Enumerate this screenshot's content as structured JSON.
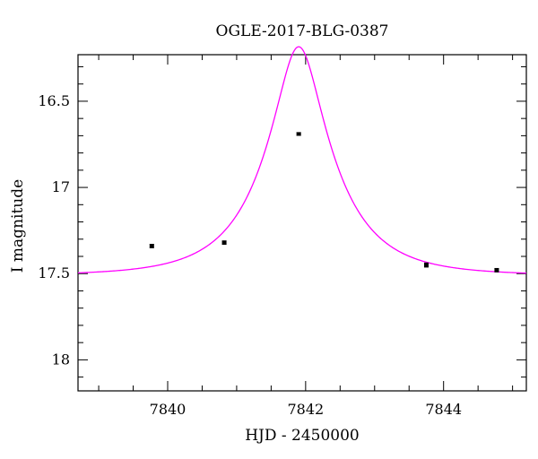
{
  "chart_data": {
    "type": "scatter",
    "title": "OGLE-2017-BLG-0387",
    "xlabel": "HJD - 2450000",
    "ylabel": "I magnitude",
    "xlim": [
      7838.7,
      7845.2
    ],
    "ylim": [
      18.18,
      16.23
    ],
    "y_inverted": true,
    "x_ticks": [
      7840,
      7842,
      7844
    ],
    "x_tick_labels": [
      "7840",
      "7842",
      "7844"
    ],
    "y_ticks": [
      16.5,
      17,
      17.5,
      18
    ],
    "y_tick_labels": [
      "16.5",
      "17",
      "17.5",
      "18"
    ],
    "grid": false,
    "series": [
      {
        "type": "scatter",
        "color": "#000000",
        "x": [
          7839.77,
          7840.82,
          7841.9,
          7843.75,
          7844.77
        ],
        "y": [
          17.34,
          17.32,
          16.69,
          17.45,
          17.48
        ],
        "yerr": [
          0.01,
          0.01,
          0.008,
          0.012,
          0.01
        ]
      },
      {
        "type": "line",
        "color": "#ff00ff",
        "model": "point-lens microlensing fit",
        "t0": 7841.9,
        "u0": 0.305,
        "tE": 1.0,
        "baseline": 17.51
      }
    ]
  }
}
